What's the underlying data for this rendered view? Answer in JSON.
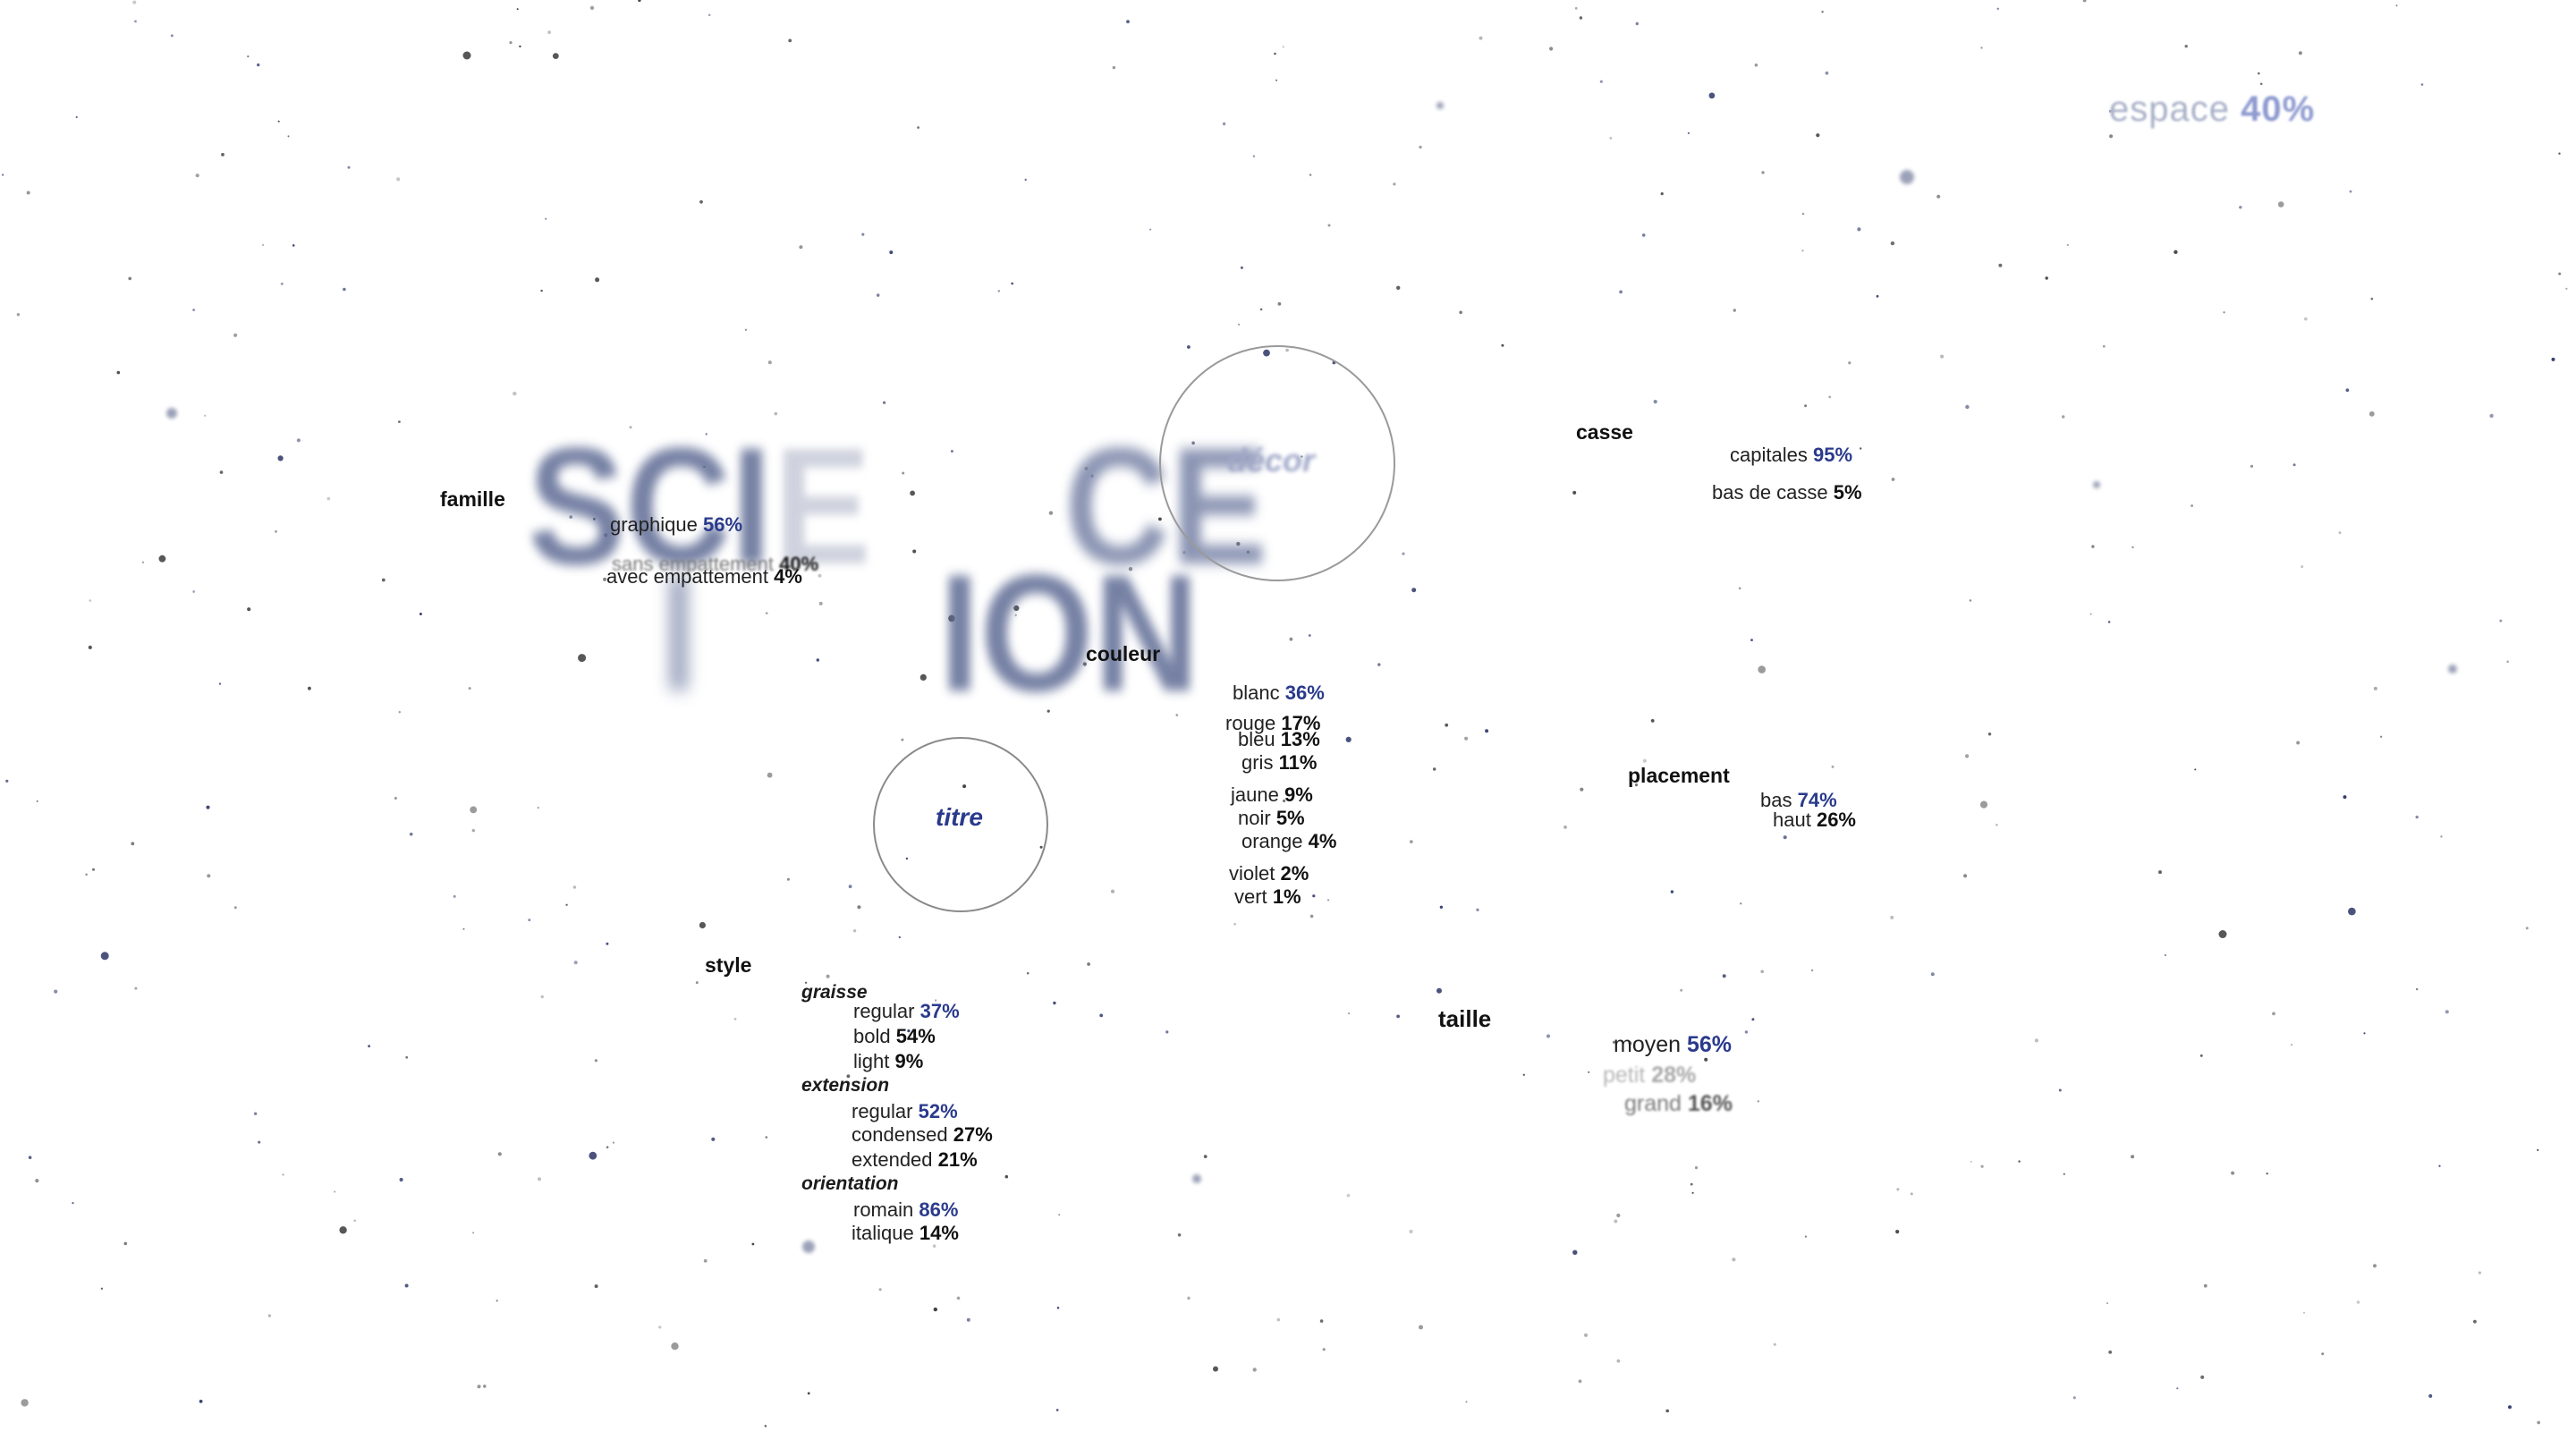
{
  "espace": {
    "label": "espace",
    "pct": "40%"
  },
  "big_text": {
    "sc": "SCI",
    "i1": "I",
    "e1": "E",
    "ce": "CE",
    "i2": "I",
    "ion": "ION"
  },
  "circles": {
    "decor": "décor",
    "titre": "titre"
  },
  "famille": {
    "label": "famille",
    "items": [
      {
        "label": "graphique",
        "pct": "56%"
      },
      {
        "label": "sans empattement",
        "pct": "40%"
      },
      {
        "label": "avec empattement",
        "pct": "4%"
      }
    ]
  },
  "couleur": {
    "label": "couleur",
    "items": [
      {
        "label": "blanc",
        "pct": "36%"
      },
      {
        "label": "rouge",
        "pct": "17%"
      },
      {
        "label": "bleu",
        "pct": "13%"
      },
      {
        "label": "gris",
        "pct": "11%"
      },
      {
        "label": "jaune",
        "pct": "9%"
      },
      {
        "label": "noir",
        "pct": "5%"
      },
      {
        "label": "orange",
        "pct": "4%"
      },
      {
        "label": "violet",
        "pct": "2%"
      },
      {
        "label": "vert",
        "pct": "1%"
      }
    ]
  },
  "casse": {
    "label": "casse",
    "items": [
      {
        "label": "capitales",
        "pct": "95%"
      },
      {
        "label": "bas de casse",
        "pct": "5%"
      }
    ]
  },
  "placement": {
    "label": "placement",
    "items": [
      {
        "label": "bas",
        "pct": "74%"
      },
      {
        "label": "haut",
        "pct": "26%"
      }
    ]
  },
  "style": {
    "label": "style",
    "graisse": {
      "label": "graisse",
      "items": [
        {
          "label": "regular",
          "pct": "37%"
        },
        {
          "label": "bold",
          "pct": "54%"
        },
        {
          "label": "light",
          "pct": "9%"
        }
      ]
    },
    "extension": {
      "label": "extension",
      "items": [
        {
          "label": "regular",
          "pct": "52%"
        },
        {
          "label": "condensed",
          "pct": "27%"
        },
        {
          "label": "extended",
          "pct": "21%"
        }
      ]
    },
    "orientation": {
      "label": "orientation",
      "items": [
        {
          "label": "romain",
          "pct": "86%"
        },
        {
          "label": "italique",
          "pct": "14%"
        }
      ]
    }
  },
  "taille": {
    "label": "taille",
    "items": [
      {
        "label": "moyen",
        "pct": "56%"
      },
      {
        "label": "petit",
        "pct": "28%"
      },
      {
        "label": "grand",
        "pct": "16%"
      }
    ]
  },
  "colors": {
    "accent": "#2a3a8c",
    "background": "#ffffff",
    "text": "#1a1a1a"
  }
}
